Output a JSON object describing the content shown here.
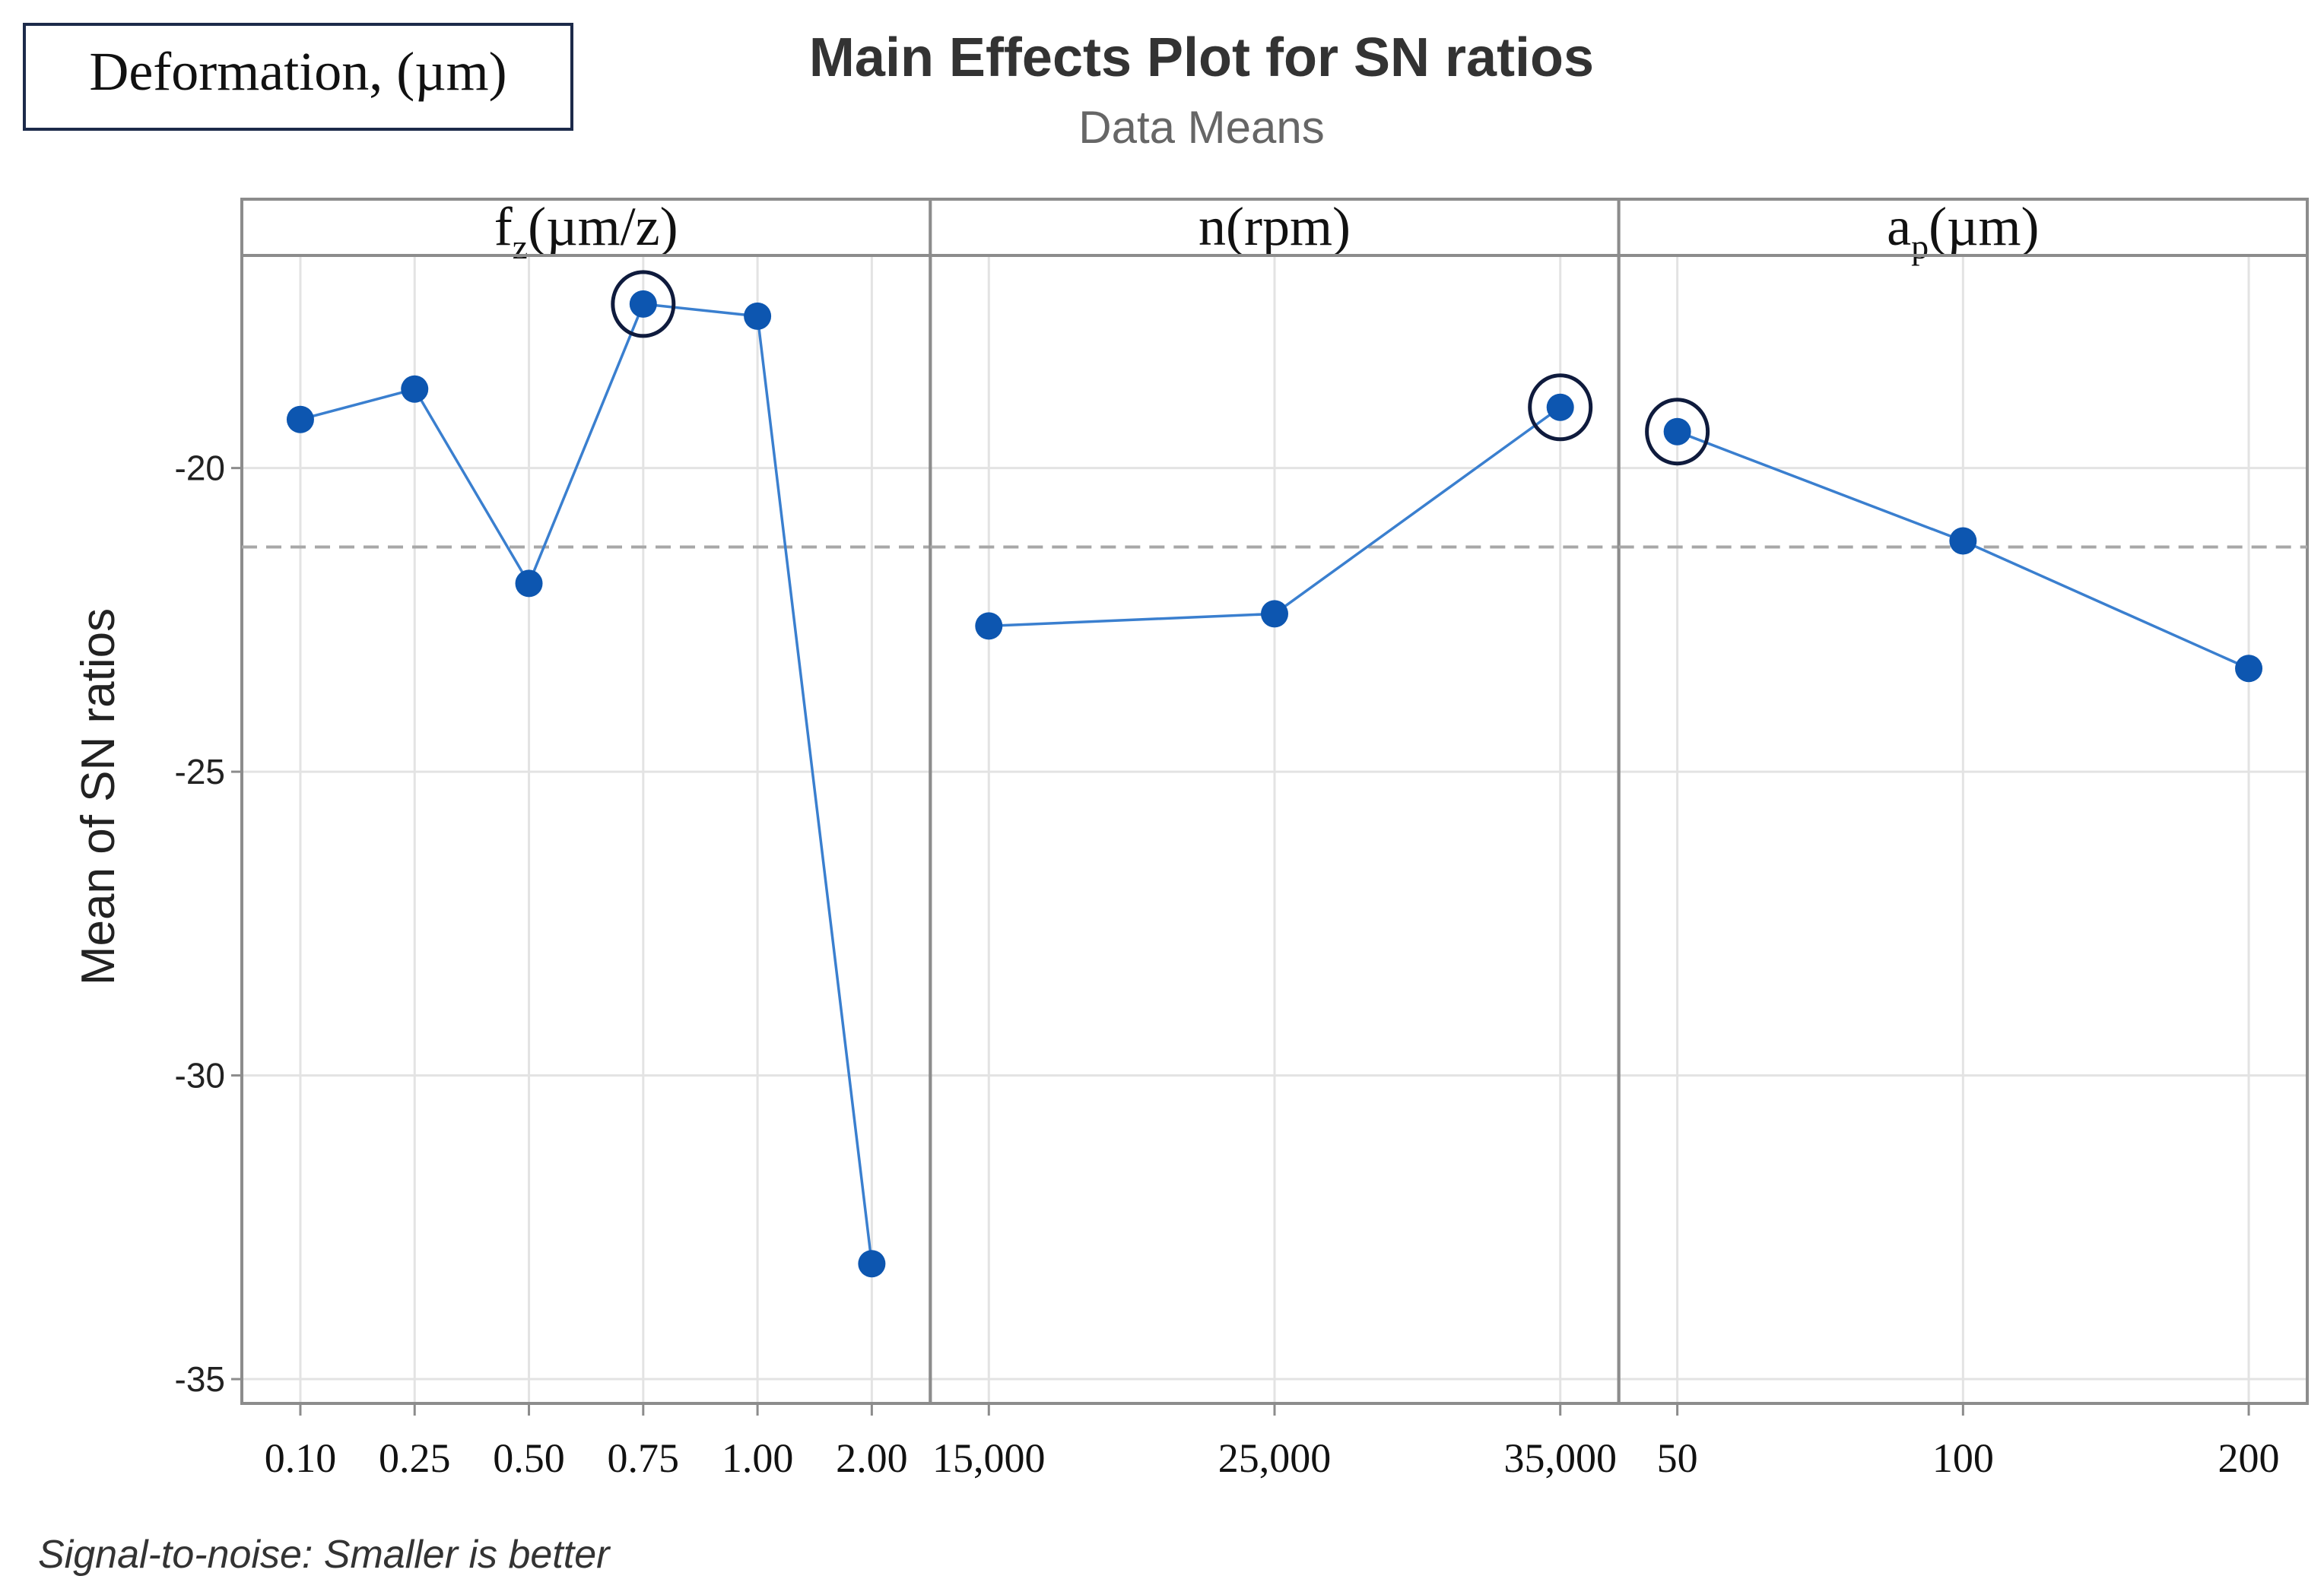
{
  "chart_data": {
    "type": "line",
    "title": "Main Effects Plot for SN ratios",
    "subtitle": "Data Means",
    "response_label": "Deformation, (µm)",
    "ylabel": "Mean of SN ratios",
    "footnote": "Signal-to-noise: Smaller is better",
    "ylim": [
      -35.4,
      -16.5
    ],
    "yticks": [
      -20,
      -25,
      -30,
      -35
    ],
    "ytick_labels": [
      "-20",
      "-25",
      "-30",
      "-35"
    ],
    "reference_mean": -21.3,
    "panels": [
      {
        "label_main": "f",
        "label_sub": "z",
        "label_rest": "(µm/z)",
        "categories": [
          "0.10",
          "0.25",
          "0.50",
          "0.75",
          "1.00",
          "2.00"
        ],
        "values": [
          -19.2,
          -18.7,
          -21.9,
          -17.3,
          -17.5,
          -33.1
        ],
        "highlight_index": 3
      },
      {
        "label_main": "n(rpm)",
        "label_sub": "",
        "label_rest": "",
        "categories": [
          "15,000",
          "25,000",
          "35,000"
        ],
        "values": [
          -22.6,
          -22.4,
          -19.0
        ],
        "highlight_index": 2
      },
      {
        "label_main": "a",
        "label_sub": "p",
        "label_rest": "(µm)",
        "categories": [
          "50",
          "100",
          "200"
        ],
        "values": [
          -19.4,
          -21.2,
          -23.3
        ],
        "highlight_index": 0
      }
    ],
    "colors": {
      "line": "#3a7fcf",
      "point": "#0d56b0",
      "highlight_ring": "#0f1b3d",
      "grid": "#e3e3e3",
      "frame": "#8c8c8c",
      "mean_line": "#a8a8a8",
      "title": "#333333",
      "subtitle": "#666666",
      "axis_text": "#222222"
    }
  }
}
